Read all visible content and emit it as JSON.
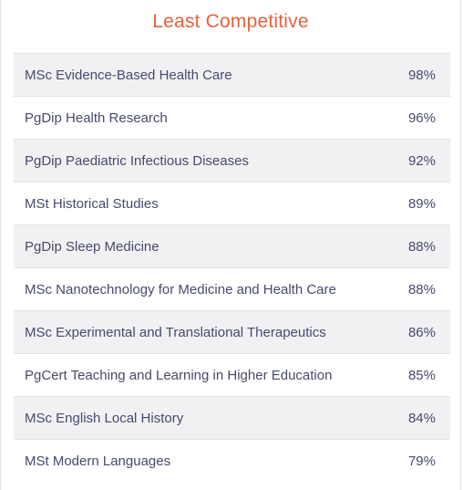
{
  "header": {
    "title": "Least Competitive"
  },
  "colors": {
    "title": "#e8603c",
    "text": "#474a6b",
    "row_alt_bg": "#f1f1f3",
    "divider": "#e3e3e7"
  },
  "rows": [
    {
      "name": "MSc Evidence-Based Health Care",
      "percent": "98%"
    },
    {
      "name": "PgDip Health Research",
      "percent": "96%"
    },
    {
      "name": "PgDip Paediatric Infectious Diseases",
      "percent": "92%"
    },
    {
      "name": "MSt Historical Studies",
      "percent": "89%"
    },
    {
      "name": "PgDip Sleep Medicine",
      "percent": "88%"
    },
    {
      "name": "MSc Nanotechnology for Medicine and Health Care",
      "percent": "88%"
    },
    {
      "name": "MSc Experimental and Translational Therapeutics",
      "percent": "86%"
    },
    {
      "name": "PgCert Teaching and Learning in Higher Education",
      "percent": "85%"
    },
    {
      "name": "MSc English Local History",
      "percent": "84%"
    },
    {
      "name": "MSt Modern Languages",
      "percent": "79%"
    }
  ]
}
